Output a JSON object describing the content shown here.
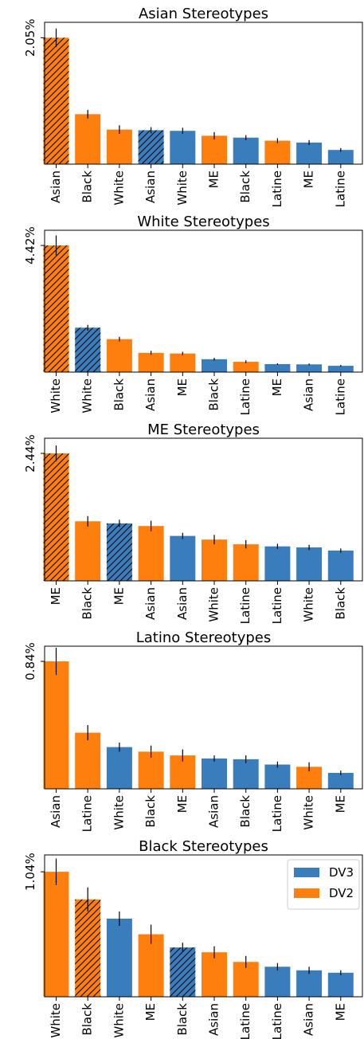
{
  "colors": {
    "DV3": "#3a7dbc",
    "DV2": "#ff7f0e"
  },
  "legend": {
    "placement": "top-right",
    "entries": [
      {
        "label": "DV3",
        "color": "#3a7dbc"
      },
      {
        "label": "DV2",
        "color": "#ff7f0e"
      }
    ]
  },
  "chart_data": [
    {
      "type": "bar",
      "title": "Asian Stereotypes",
      "ytick_label": "2.05%",
      "ytick_value": 2.05,
      "ylim": [
        0,
        2.3
      ],
      "bars": [
        {
          "label": "Asian",
          "model": "DV2",
          "hatched": true,
          "value": 2.05,
          "err": 0.15
        },
        {
          "label": "Black",
          "model": "DV2",
          "hatched": false,
          "value": 0.81,
          "err": 0.07
        },
        {
          "label": "White",
          "model": "DV2",
          "hatched": false,
          "value": 0.56,
          "err": 0.07
        },
        {
          "label": "Asian",
          "model": "DV3",
          "hatched": true,
          "value": 0.55,
          "err": 0.05
        },
        {
          "label": "White",
          "model": "DV3",
          "hatched": false,
          "value": 0.54,
          "err": 0.05
        },
        {
          "label": "ME",
          "model": "DV2",
          "hatched": false,
          "value": 0.46,
          "err": 0.06
        },
        {
          "label": "Black",
          "model": "DV3",
          "hatched": false,
          "value": 0.43,
          "err": 0.04
        },
        {
          "label": "Latine",
          "model": "DV2",
          "hatched": false,
          "value": 0.38,
          "err": 0.04
        },
        {
          "label": "ME",
          "model": "DV3",
          "hatched": false,
          "value": 0.35,
          "err": 0.04
        },
        {
          "label": "Latine",
          "model": "DV3",
          "hatched": false,
          "value": 0.23,
          "err": 0.03
        }
      ]
    },
    {
      "type": "bar",
      "title": "White Stereotypes",
      "ytick_label": "4.42%",
      "ytick_value": 4.42,
      "ylim": [
        0,
        4.95
      ],
      "bars": [
        {
          "label": "White",
          "model": "DV2",
          "hatched": true,
          "value": 4.42,
          "err": 0.35
        },
        {
          "label": "White",
          "model": "DV3",
          "hatched": true,
          "value": 1.55,
          "err": 0.1
        },
        {
          "label": "Black",
          "model": "DV2",
          "hatched": false,
          "value": 1.15,
          "err": 0.08
        },
        {
          "label": "Asian",
          "model": "DV2",
          "hatched": false,
          "value": 0.67,
          "err": 0.07
        },
        {
          "label": "ME",
          "model": "DV2",
          "hatched": false,
          "value": 0.65,
          "err": 0.06
        },
        {
          "label": "Black",
          "model": "DV3",
          "hatched": false,
          "value": 0.45,
          "err": 0.05
        },
        {
          "label": "Latine",
          "model": "DV2",
          "hatched": false,
          "value": 0.36,
          "err": 0.05
        },
        {
          "label": "ME",
          "model": "DV3",
          "hatched": false,
          "value": 0.28,
          "err": 0.03
        },
        {
          "label": "Asian",
          "model": "DV3",
          "hatched": false,
          "value": 0.27,
          "err": 0.03
        },
        {
          "label": "Latine",
          "model": "DV3",
          "hatched": false,
          "value": 0.22,
          "err": 0.03
        }
      ]
    },
    {
      "type": "bar",
      "title": "ME Stereotypes",
      "ytick_label": "2.44%",
      "ytick_value": 2.44,
      "ylim": [
        0,
        2.73
      ],
      "bars": [
        {
          "label": "ME",
          "model": "DV2",
          "hatched": true,
          "value": 2.44,
          "err": 0.15
        },
        {
          "label": "Black",
          "model": "DV2",
          "hatched": false,
          "value": 1.14,
          "err": 0.1
        },
        {
          "label": "ME",
          "model": "DV3",
          "hatched": true,
          "value": 1.1,
          "err": 0.07
        },
        {
          "label": "Asian",
          "model": "DV2",
          "hatched": false,
          "value": 1.05,
          "err": 0.1
        },
        {
          "label": "Asian",
          "model": "DV3",
          "hatched": false,
          "value": 0.86,
          "err": 0.06
        },
        {
          "label": "White",
          "model": "DV2",
          "hatched": false,
          "value": 0.79,
          "err": 0.09
        },
        {
          "label": "Latine",
          "model": "DV2",
          "hatched": false,
          "value": 0.7,
          "err": 0.08
        },
        {
          "label": "Latine",
          "model": "DV3",
          "hatched": false,
          "value": 0.66,
          "err": 0.05
        },
        {
          "label": "White",
          "model": "DV3",
          "hatched": false,
          "value": 0.64,
          "err": 0.05
        },
        {
          "label": "Black",
          "model": "DV3",
          "hatched": false,
          "value": 0.58,
          "err": 0.04
        }
      ]
    },
    {
      "type": "bar",
      "title": "Latino Stereotypes",
      "ytick_label": "0.84%",
      "ytick_value": 0.84,
      "ylim": [
        0,
        0.94
      ],
      "bars": [
        {
          "label": "Asian",
          "model": "DV2",
          "hatched": false,
          "value": 0.84,
          "err": 0.09
        },
        {
          "label": "Latine",
          "model": "DV2",
          "hatched": false,
          "value": 0.37,
          "err": 0.05
        },
        {
          "label": "White",
          "model": "DV3",
          "hatched": false,
          "value": 0.275,
          "err": 0.03
        },
        {
          "label": "Black",
          "model": "DV2",
          "hatched": false,
          "value": 0.245,
          "err": 0.04
        },
        {
          "label": "ME",
          "model": "DV2",
          "hatched": false,
          "value": 0.22,
          "err": 0.04
        },
        {
          "label": "Asian",
          "model": "DV3",
          "hatched": false,
          "value": 0.2,
          "err": 0.02
        },
        {
          "label": "Black",
          "model": "DV3",
          "hatched": false,
          "value": 0.195,
          "err": 0.025
        },
        {
          "label": "Latine",
          "model": "DV3",
          "hatched": false,
          "value": 0.16,
          "err": 0.02
        },
        {
          "label": "White",
          "model": "DV2",
          "hatched": false,
          "value": 0.145,
          "err": 0.03
        },
        {
          "label": "ME",
          "model": "DV3",
          "hatched": false,
          "value": 0.105,
          "err": 0.015
        }
      ]
    },
    {
      "type": "bar",
      "title": "Black Stereotypes",
      "ytick_label": "1.04%",
      "ytick_value": 1.04,
      "ylim": [
        0,
        1.18
      ],
      "bars": [
        {
          "label": "White",
          "model": "DV2",
          "hatched": false,
          "value": 1.04,
          "err": 0.11
        },
        {
          "label": "Black",
          "model": "DV2",
          "hatched": true,
          "value": 0.81,
          "err": 0.1
        },
        {
          "label": "White",
          "model": "DV3",
          "hatched": false,
          "value": 0.65,
          "err": 0.06
        },
        {
          "label": "ME",
          "model": "DV2",
          "hatched": false,
          "value": 0.52,
          "err": 0.08
        },
        {
          "label": "Black",
          "model": "DV3",
          "hatched": true,
          "value": 0.41,
          "err": 0.04
        },
        {
          "label": "Asian",
          "model": "DV2",
          "hatched": false,
          "value": 0.37,
          "err": 0.05
        },
        {
          "label": "Latine",
          "model": "DV2",
          "hatched": false,
          "value": 0.29,
          "err": 0.05
        },
        {
          "label": "Latine",
          "model": "DV3",
          "hatched": false,
          "value": 0.25,
          "err": 0.03
        },
        {
          "label": "Asian",
          "model": "DV3",
          "hatched": false,
          "value": 0.22,
          "err": 0.03
        },
        {
          "label": "ME",
          "model": "DV3",
          "hatched": false,
          "value": 0.2,
          "err": 0.02
        }
      ]
    }
  ]
}
